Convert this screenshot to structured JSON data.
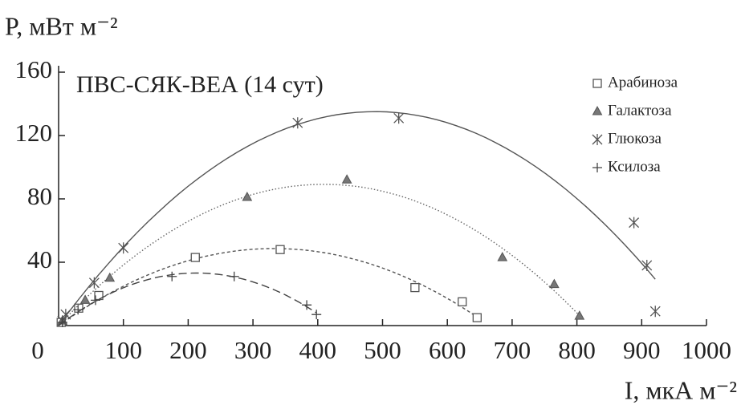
{
  "chart_data": {
    "type": "scatter",
    "title": "ПВС-СЯК-ВЕА (14 сут)",
    "y_label": "P, мВт м⁻²",
    "x_label": "I, мкА м⁻²",
    "xlim": [
      0,
      1000
    ],
    "ylim": [
      0,
      160
    ],
    "xticks": [
      0,
      100,
      200,
      300,
      400,
      500,
      600,
      700,
      800,
      900,
      1000
    ],
    "yticks": [
      40,
      80,
      120,
      160
    ],
    "legend": "top-right",
    "series": [
      {
        "name": "Арабиноза",
        "marker": "square",
        "line": "short-dash",
        "color": "#555",
        "x": [
          4,
          31,
          62,
          211,
          342,
          550,
          623,
          646
        ],
        "values": [
          2,
          11,
          19,
          43,
          48,
          24,
          15,
          5
        ]
      },
      {
        "name": "Галактоза",
        "marker": "triangle",
        "line": "dotted",
        "color": "#666",
        "x": [
          6,
          41,
          79,
          291,
          445,
          685,
          765,
          804
        ],
        "values": [
          3,
          16,
          30,
          81,
          92,
          43,
          26,
          6
        ]
      },
      {
        "name": "Глюкоза",
        "marker": "asterisk",
        "line": "solid",
        "color": "#555",
        "x": [
          6,
          11,
          55,
          100,
          369,
          525,
          888,
          908,
          921
        ],
        "values": [
          3,
          7,
          27,
          49,
          128,
          131,
          65,
          38,
          9
        ]
      },
      {
        "name": "Ксилоза",
        "marker": "plus",
        "line": "long-dash",
        "color": "#444",
        "x": [
          6,
          30,
          57,
          175,
          271,
          383,
          398
        ],
        "values": [
          2,
          10,
          16,
          31,
          31,
          13,
          7
        ]
      }
    ]
  }
}
